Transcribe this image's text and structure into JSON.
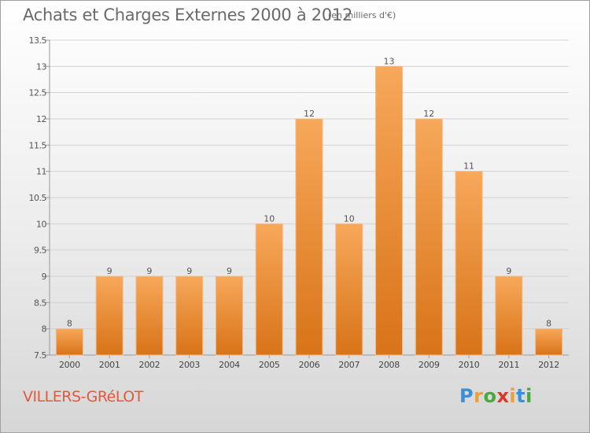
{
  "title": "Achats et Charges Externes 2000 à 2012",
  "subtitle": "(en milliers d'€)",
  "town": "VILLERS-GRéLOT",
  "logo": {
    "letters": [
      "P",
      "r",
      "o",
      "x",
      "i",
      "t",
      "i"
    ],
    "colors": [
      "#3a8fd6",
      "#e9a13a",
      "#4aa83f",
      "#d9382e",
      "#e9a13a",
      "#3a8fd6",
      "#4aa83f"
    ]
  },
  "chart_data": {
    "type": "bar",
    "categories": [
      "2000",
      "2001",
      "2002",
      "2003",
      "2004",
      "2005",
      "2006",
      "2007",
      "2008",
      "2009",
      "2010",
      "2011",
      "2012"
    ],
    "values": [
      8,
      9,
      9,
      9,
      9,
      10,
      12,
      10,
      13,
      12,
      11,
      9,
      8
    ],
    "data_labels": [
      "8",
      "9",
      "9",
      "9",
      "9",
      "10",
      "12",
      "10",
      "13",
      "12",
      "11",
      "9",
      "8"
    ],
    "ylim": [
      7.5,
      13.5
    ],
    "yticks": [
      7.5,
      8,
      8.5,
      9,
      9.5,
      10,
      10.5,
      11,
      11.5,
      12,
      12.5,
      13,
      13.5
    ],
    "ytick_labels": [
      "7.5",
      "8",
      "8.5",
      "9",
      "9.5",
      "10",
      "10.5",
      "11",
      "11.5",
      "12",
      "12.5",
      "13",
      "13.5"
    ],
    "grid": true,
    "bar_color_top": "#f7a85a",
    "bar_color_bottom": "#d87318"
  }
}
